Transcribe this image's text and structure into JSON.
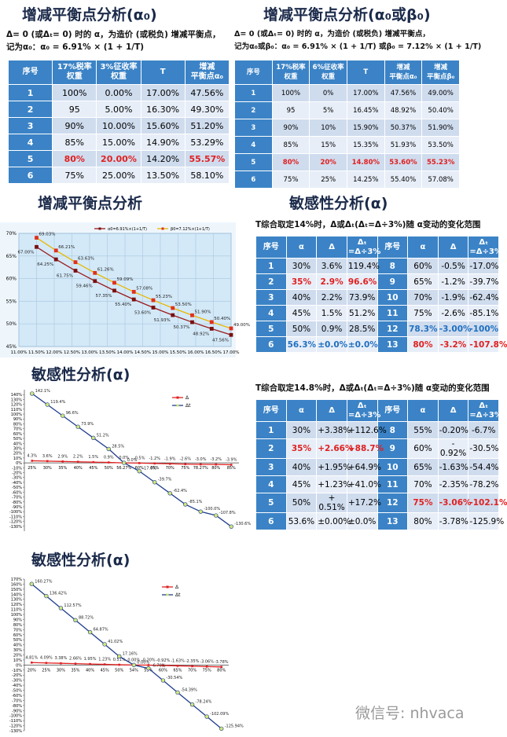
{
  "alpha_table": {
    "title": "增减平衡点分析(α₀)",
    "notes": [
      "Δ= 0 (或Δₜ= 0) 时的 α，为造价 (或税负) 增减平衡点，",
      "记为α₀：α₀ = 6.91% × (1 + 1/T)"
    ],
    "header": [
      "序号",
      "17%税率\n权重",
      "3%征收率\n权重",
      "T",
      "增减\n平衡点α₀"
    ],
    "rows": [
      [
        "1",
        "100%",
        "0.00%",
        "17.00%",
        "47.56%"
      ],
      [
        "2",
        "95",
        "5.00%",
        "16.30%",
        "49.30%"
      ],
      [
        "3",
        "90%",
        "10.00%",
        "15.60%",
        "51.20%"
      ],
      [
        "4",
        "85%",
        "15.00%",
        "14.90%",
        "53.29%"
      ],
      [
        "5",
        "80%",
        "20.00%",
        "14.20%",
        "55.57%"
      ],
      [
        "6",
        "75%",
        "25.00%",
        "13.50%",
        "58.10%"
      ]
    ],
    "highlights": [
      {
        "row": 4,
        "cols": [
          1,
          2,
          4
        ],
        "color": "#e02020"
      }
    ]
  },
  "alpha_beta_table": {
    "title": "增减平衡点分析(α₀或β₀)",
    "notes": [
      "Δ= 0 (或Δₜ= 0) 时的 α，为造价 (或税负) 增减平衡点，",
      "记为α₀或β₀：α₀ = 6.91% × (1 + 1/T) 或β₀ = 7.12% × (1 + 1/T)"
    ],
    "header": [
      "序号",
      "17%税率\n权重",
      "6%征收率\n权重",
      "T",
      "增减\n平衡点α₀",
      "增减\n平衡点β₀"
    ],
    "rows": [
      [
        "1",
        "100%",
        "0%",
        "17.00%",
        "47.56%",
        "49.00%"
      ],
      [
        "2",
        "95",
        "5%",
        "16.45%",
        "48.92%",
        "50.40%"
      ],
      [
        "3",
        "90%",
        "10%",
        "15.90%",
        "50.37%",
        "51.90%"
      ],
      [
        "4",
        "85%",
        "15%",
        "15.35%",
        "51.93%",
        "53.50%"
      ],
      [
        "5",
        "80%",
        "20%",
        "14.80%",
        "53.60%",
        "55.23%"
      ],
      [
        "6",
        "75%",
        "25%",
        "14.25%",
        "55.40%",
        "57.08%"
      ]
    ],
    "highlights": [
      {
        "row": 4,
        "cols": [
          1,
          2,
          3,
          4,
          5
        ],
        "color": "#e02020"
      }
    ]
  },
  "sensitivity_table_14": {
    "title": "敏感性分析(α)",
    "note": "T综合取定14%时，Δ或Δₜ(Δₜ=Δ÷3%)随 α变动的变化范围",
    "header": [
      "序号",
      "α",
      "Δ",
      "Δₜ\n=Δ÷3%",
      "序号",
      "α",
      "Δ",
      "Δₜ\n=Δ÷3%"
    ],
    "rows": [
      [
        "1",
        "30%",
        "3.6%",
        "119.4%",
        "8",
        "60%",
        "-0.5%",
        "-17.0%"
      ],
      [
        "2",
        "35%",
        "2.9%",
        "96.6%",
        "9",
        "65%",
        "-1.2%",
        "-39.7%"
      ],
      [
        "3",
        "40%",
        "2.2%",
        "73.9%",
        "10",
        "70%",
        "-1.9%",
        "-62.4%"
      ],
      [
        "4",
        "45%",
        "1.5%",
        "51.2%",
        "11",
        "75%",
        "-2.6%",
        "-85.1%"
      ],
      [
        "5",
        "50%",
        "0.9%",
        "28.5%",
        "12",
        "78.3%",
        "-3.00%",
        "-100%"
      ],
      [
        "6",
        "56.3%",
        "±0.0%",
        "±0.0%",
        "13",
        "80%",
        "-3.2%",
        "-107.8%"
      ]
    ],
    "highlights": [
      {
        "row": 1,
        "cols": [
          1,
          2,
          3
        ],
        "color": "#e02020"
      },
      {
        "row": 5,
        "cols": [
          1,
          2,
          3
        ],
        "color": "#1f6fc0"
      },
      {
        "row": 4,
        "cols": [
          5,
          6,
          7
        ],
        "color": "#1f6fc0"
      },
      {
        "row": 5,
        "cols": [
          5,
          6,
          7
        ],
        "color": "#e02020"
      }
    ]
  },
  "sensitivity_table_148": {
    "note": "T综合取定14.8%时，Δ或Δₜ(Δₜ=Δ÷3%)随 α变动的变化范围",
    "header": [
      "序号",
      "α",
      "Δ",
      "Δₜ\n=Δ÷3%",
      "序号",
      "α",
      "Δ",
      "Δₜ\n=Δ÷3%"
    ],
    "rows": [
      [
        "1",
        "30%",
        "+3.38%",
        "+112.6%",
        "8",
        "55%",
        "-0.20%",
        "-6.7%"
      ],
      [
        "2",
        "35%",
        "+2.66%",
        "+88.7%",
        "9",
        "60%",
        "- 0.92%",
        "-30.5%"
      ],
      [
        "3",
        "40%",
        "+1.95%",
        "+64.9%",
        "10",
        "65%",
        "-1.63%",
        "-54.4%"
      ],
      [
        "4",
        "45%",
        "+1.23%",
        "+41.0%",
        "11",
        "70%",
        "-2.35%",
        "-78.2%"
      ],
      [
        "5",
        "50%",
        "+ 0.51%",
        "+17.2%",
        "12",
        "75%",
        "-3.06%",
        "-102.1%"
      ],
      [
        "6",
        "53.6%",
        "±0.00%",
        "±0.0%",
        "13",
        "80%",
        "-3.78%",
        "-125.9%"
      ]
    ],
    "highlights": [
      {
        "row": 1,
        "cols": [
          1,
          2,
          3
        ],
        "color": "#e02020"
      },
      {
        "row": 4,
        "cols": [
          5,
          6,
          7
        ],
        "color": "#e02020"
      }
    ]
  },
  "chart_data": [
    {
      "type": "line",
      "title": "增减平衡点分析",
      "x": [
        11.5,
        12.05,
        12.6,
        13.15,
        13.7,
        14.25,
        14.8,
        15.35,
        15.9,
        16.45,
        17
      ],
      "series": [
        {
          "name": "α0=6.91%×(1+1/T)",
          "color": "#9b1c1c",
          "marker": "square",
          "marker_color": "#7a1010",
          "values": [
            67,
            64.25,
            61.75,
            59.46,
            57.35,
            55.4,
            53.6,
            51.93,
            50.37,
            48.92,
            47.56
          ],
          "value_labels": [
            "67.00%",
            "64.25%",
            "61.75%",
            "59.46%",
            "57.35%",
            "55.40%",
            "53.60%",
            "51.93%",
            "50.37%",
            "48.92%",
            "47.56%"
          ]
        },
        {
          "name": "β0=7.12%×(1+1/T)",
          "color": "#e8b800",
          "marker": "square",
          "marker_color": "#e0301e",
          "values": [
            69.03,
            66.21,
            63.63,
            61.26,
            59.09,
            57.08,
            55.23,
            53.5,
            51.9,
            50.4,
            49
          ],
          "value_labels": [
            "69.03%",
            "66.21%",
            "63.63%",
            "61.26%",
            "59.09%",
            "57.08%",
            "55.23%",
            "53.50%",
            "51.90%",
            "50.40%",
            "49.00%"
          ]
        }
      ],
      "xlim": [
        11,
        17
      ],
      "xticks": [
        {
          "value": 11,
          "label": "11.00%"
        },
        {
          "value": 11.5,
          "label": "11.50%"
        },
        {
          "value": 12,
          "label": "12.00%"
        },
        {
          "value": 12.5,
          "label": "12.50%"
        },
        {
          "value": 13,
          "label": "13.00%"
        },
        {
          "value": 13.5,
          "label": "13.50%"
        },
        {
          "value": 14,
          "label": "14.00%"
        },
        {
          "value": 14.5,
          "label": "14.50%"
        },
        {
          "value": 15,
          "label": "15.00%"
        },
        {
          "value": 15.5,
          "label": "15.50%"
        },
        {
          "value": 16,
          "label": "16.00%"
        },
        {
          "value": 16.5,
          "label": "16.50%"
        },
        {
          "value": 17,
          "label": "17.00%"
        }
      ],
      "ylim": [
        45,
        70
      ],
      "yticks": [
        {
          "value": 45,
          "label": "45%"
        },
        {
          "value": 50,
          "label": "50%"
        },
        {
          "value": 55,
          "label": "55%"
        },
        {
          "value": 60,
          "label": "60%"
        },
        {
          "value": 65,
          "label": "65%"
        },
        {
          "value": 70,
          "label": "70%"
        }
      ],
      "grid": true,
      "plot_background": "#d3e9f8"
    },
    {
      "type": "line",
      "title": "敏感性分析(α)",
      "categories": [
        "25%",
        "30%",
        "35%",
        "40%",
        "45%",
        "50%",
        "56.27%",
        "60%",
        "65%",
        "70%",
        "75%",
        "78.27%",
        "80%",
        "85%"
      ],
      "series": [
        {
          "name": "Δ",
          "color": "#e02020",
          "marker": "square",
          "marker_color": "#e02020",
          "values": [
            4.3,
            3.6,
            2.9,
            2.2,
            1.5,
            0.9,
            0,
            -0.5,
            -1.2,
            -1.9,
            -2.6,
            -3,
            -3.2,
            -3.9
          ],
          "value_labels": [
            "4.3%",
            "3.6%",
            "2.9%",
            "2.2%",
            "1.5%",
            "0.9%",
            "0.0%",
            "-0.5%",
            "-1.2%",
            "-1.9%",
            "-2.6%",
            "-3.0%",
            "-3.2%",
            "-3.9%"
          ]
        },
        {
          "name": "Δt",
          "color": "#1f3d8c",
          "marker": "circle",
          "marker_color": "#d2e77a",
          "values": [
            142.1,
            119.4,
            96.6,
            73.9,
            51.2,
            28.5,
            0,
            -17,
            -39.7,
            -62.4,
            -85.1,
            -100,
            -107.8,
            -130.6
          ],
          "value_labels": [
            "142.1%",
            "119.4%",
            "96.6%",
            "73.9%",
            "51.2%",
            "28.5%",
            "0.0%",
            "-17.0%",
            "-39.7%",
            "-62.4%",
            "-85.1%",
            "-100.0%",
            "-107.8%",
            "-130.6%"
          ]
        }
      ],
      "ylim": [
        -140,
        150
      ],
      "yticks": [
        {
          "value": -130,
          "label": "-130%"
        },
        {
          "value": -120,
          "label": "-120%"
        },
        {
          "value": -110,
          "label": "-110%"
        },
        {
          "value": -100,
          "label": "-100%"
        },
        {
          "value": -90,
          "label": "-90%"
        },
        {
          "value": -80,
          "label": "-80%"
        },
        {
          "value": -70,
          "label": "-70%"
        },
        {
          "value": -60,
          "label": "-60%"
        },
        {
          "value": -50,
          "label": "-50%"
        },
        {
          "value": -40,
          "label": "-40%"
        },
        {
          "value": -30,
          "label": "-30%"
        },
        {
          "value": -20,
          "label": "-20%"
        },
        {
          "value": -10,
          "label": "-10%"
        },
        {
          "value": 0,
          "label": "0%"
        },
        {
          "value": 10,
          "label": "10%"
        },
        {
          "value": 20,
          "label": "20%"
        },
        {
          "value": 30,
          "label": "30%"
        },
        {
          "value": 40,
          "label": "40%"
        },
        {
          "value": 50,
          "label": "50%"
        },
        {
          "value": 60,
          "label": "60%"
        },
        {
          "value": 70,
          "label": "70%"
        },
        {
          "value": 80,
          "label": "80%"
        },
        {
          "value": 90,
          "label": "90%"
        },
        {
          "value": 100,
          "label": "100%"
        },
        {
          "value": 110,
          "label": "110%"
        },
        {
          "value": 120,
          "label": "120%"
        },
        {
          "value": 130,
          "label": "130%"
        },
        {
          "value": 140,
          "label": "140%"
        }
      ],
      "grid": false,
      "plot_background": "#ffffff"
    },
    {
      "type": "line",
      "title": "敏感性分析(α)",
      "categories": [
        "20%",
        "25%",
        "30%",
        "35%",
        "40%",
        "45%",
        "50%",
        "54%",
        "55%",
        "60%",
        "65%",
        "70%",
        "75%",
        "80%"
      ],
      "series": [
        {
          "name": "Δ",
          "color": "#e02020",
          "marker": "square",
          "marker_color": "#e02020",
          "values": [
            4.81,
            4.09,
            3.38,
            2.66,
            1.95,
            1.23,
            0.51,
            0,
            -0.2,
            -0.92,
            -1.63,
            -2.35,
            -3.06,
            -3.78
          ],
          "value_labels": [
            "4.81%",
            "4.09%",
            "3.38%",
            "2.66%",
            "1.95%",
            "1.23%",
            "0.51%",
            "0.00%",
            "-0.20%",
            "-0.92%",
            "-1.63%",
            "-2.35%",
            "-3.06%",
            "-3.78%"
          ]
        },
        {
          "name": "Δt",
          "color": "#1f3d8c",
          "marker": "circle",
          "marker_color": "#d2e77a",
          "values": [
            160.27,
            136.42,
            112.57,
            88.72,
            64.87,
            41.02,
            17.16,
            0,
            -6.7,
            -30.54,
            -54.39,
            -78.24,
            -102.09,
            -125.94
          ],
          "value_labels": [
            "160.27%",
            "136.42%",
            "112.57%",
            "88.72%",
            "64.87%",
            "41.02%",
            "17.16%",
            "0.00%",
            "-6.70%",
            "-30.54%",
            "-54.39%",
            "-78.24%",
            "-102.09%",
            "-125.94%"
          ]
        }
      ],
      "ylim": [
        -130,
        170
      ],
      "yticks": [
        {
          "value": -130,
          "label": "-130%"
        },
        {
          "value": -120,
          "label": "-120%"
        },
        {
          "value": -110,
          "label": "-110%"
        },
        {
          "value": -100,
          "label": "-100%"
        },
        {
          "value": -90,
          "label": "-90%"
        },
        {
          "value": -80,
          "label": "-80%"
        },
        {
          "value": -70,
          "label": "-70%"
        },
        {
          "value": -60,
          "label": "-60%"
        },
        {
          "value": -50,
          "label": "-50%"
        },
        {
          "value": -40,
          "label": "-40%"
        },
        {
          "value": -30,
          "label": "-30%"
        },
        {
          "value": -20,
          "label": "-20%"
        },
        {
          "value": -10,
          "label": "-10%"
        },
        {
          "value": 0,
          "label": "0%"
        },
        {
          "value": 10,
          "label": "10%"
        },
        {
          "value": 20,
          "label": "20%"
        },
        {
          "value": 30,
          "label": "30%"
        },
        {
          "value": 40,
          "label": "40%"
        },
        {
          "value": 50,
          "label": "50%"
        },
        {
          "value": 60,
          "label": "60%"
        },
        {
          "value": 70,
          "label": "70%"
        },
        {
          "value": 80,
          "label": "80%"
        },
        {
          "value": 90,
          "label": "90%"
        },
        {
          "value": 100,
          "label": "100%"
        },
        {
          "value": 110,
          "label": "110%"
        },
        {
          "value": 120,
          "label": "120%"
        },
        {
          "value": 130,
          "label": "130%"
        },
        {
          "value": 140,
          "label": "140%"
        },
        {
          "value": 150,
          "label": "150%"
        },
        {
          "value": 160,
          "label": "160%"
        },
        {
          "value": 170,
          "label": "170%"
        }
      ],
      "grid": false,
      "plot_background": "#ffffff"
    }
  ],
  "watermark": "微信号: nhvaca"
}
